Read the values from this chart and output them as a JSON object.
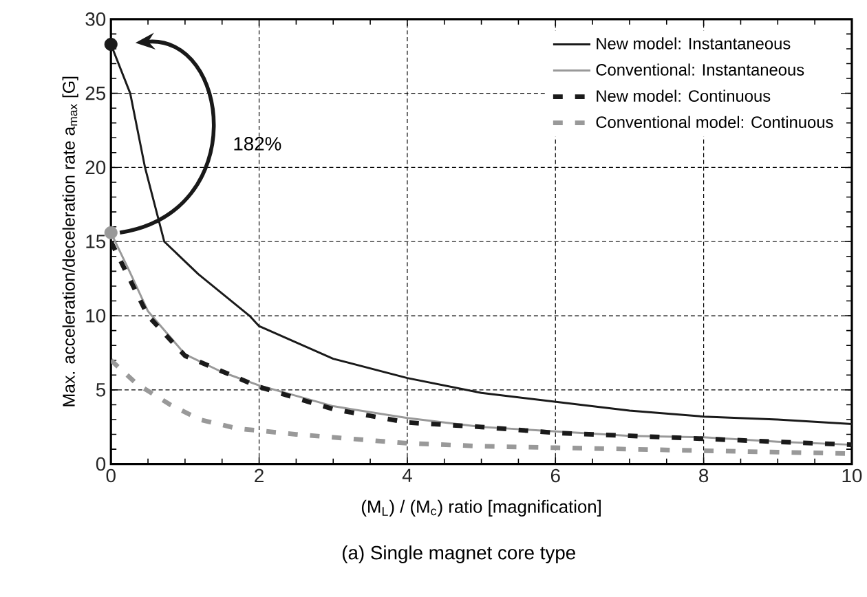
{
  "chart_data": {
    "type": "line",
    "title": "(a) Single magnet core type",
    "xlabel": "(M$_{L}$) / (M$_{c}$) ratio [magnification]",
    "ylabel": "Max. acceleration/deceleration rate a$_{max}$ [G]",
    "annotations": [
      "182%"
    ],
    "xlim": [
      0,
      10
    ],
    "ylim": [
      0,
      30
    ],
    "xticks": [
      0,
      2,
      4,
      6,
      8,
      10
    ],
    "yticks": [
      0,
      5,
      10,
      15,
      20,
      25,
      30
    ],
    "grid": true,
    "legend": "top right",
    "series": [
      {
        "name": "New model: Instantaneous",
        "color": "#1a1a1a",
        "line_style": "solid",
        "x": [
          0,
          0.26,
          0.46,
          0.72,
          1.18,
          1.87,
          2,
          2.5,
          3,
          4,
          5,
          6,
          7,
          8,
          9,
          10
        ],
        "values": [
          28.3,
          25,
          20,
          15,
          12.8,
          10,
          9.3,
          8.2,
          7.1,
          5.8,
          4.8,
          4.2,
          3.6,
          3.2,
          3.0,
          2.7
        ]
      },
      {
        "name": "Conventional: Instantaneous",
        "color": "#999999",
        "line_style": "solid",
        "x": [
          0,
          0.25,
          0.5,
          1,
          1.5,
          2,
          3,
          4,
          5,
          6,
          7,
          8,
          9,
          10
        ],
        "values": [
          15.6,
          13,
          10.3,
          7.4,
          6.2,
          5.3,
          3.9,
          3.1,
          2.5,
          2.2,
          1.9,
          1.8,
          1.5,
          1.3
        ]
      },
      {
        "name": "New model: Continuous",
        "color": "#1a1a1a",
        "line_style": "dashed",
        "x": [
          0,
          0.5,
          1,
          2,
          3,
          4,
          5,
          6,
          7,
          8,
          9,
          10
        ],
        "values": [
          15,
          10,
          7.3,
          5.2,
          3.7,
          2.8,
          2.5,
          2.1,
          1.9,
          1.7,
          1.5,
          1.3
        ]
      },
      {
        "name": "Conventional model: Continuous",
        "color": "#999999",
        "line_style": "dashed",
        "x": [
          0,
          0.35,
          0.8,
          1.2,
          1.7,
          2.5,
          3,
          4,
          5,
          6,
          7,
          8,
          9,
          10
        ],
        "values": [
          7,
          5.4,
          4,
          3,
          2.4,
          2,
          1.8,
          1.4,
          1.2,
          1.1,
          1,
          0.9,
          0.8,
          0.7
        ]
      },
      {
        "type": "scatter",
        "marker": "circle",
        "x": [
          0,
          0
        ],
        "values": [
          28.3,
          15.6
        ],
        "colors": [
          "#1a1a1a",
          "#999999"
        ]
      }
    ]
  }
}
